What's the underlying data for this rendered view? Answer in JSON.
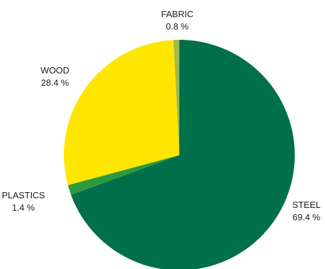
{
  "chart_data": {
    "type": "pie",
    "title": "",
    "slices": [
      {
        "label": "STEEL",
        "value": 69.4,
        "display": "69.4 %",
        "color": "#00704a"
      },
      {
        "label": "PLASTICS",
        "value": 1.4,
        "display": "1.4 %",
        "color": "#2e9a3e"
      },
      {
        "label": "WOOD",
        "value": 28.4,
        "display": "28.4 %",
        "color": "#ffe600"
      },
      {
        "label": "FABRIC",
        "value": 0.8,
        "display": "0.8 %",
        "color": "#9dbb4f"
      }
    ],
    "start": "12 o'clock",
    "direction": "clockwise",
    "legend": "none (labels outside slices)"
  }
}
